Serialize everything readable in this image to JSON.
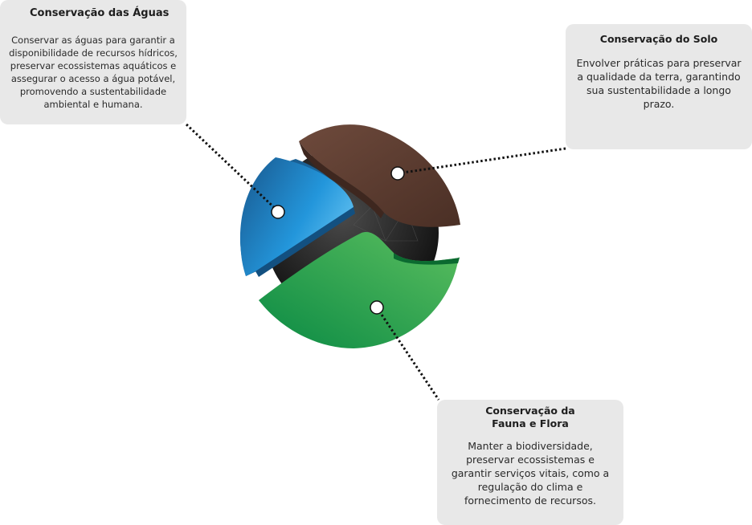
{
  "colors": {
    "water": "#2a93d5",
    "soil": "#5b3a2e",
    "flora": "#2ea44f",
    "core": "#1a1a1a",
    "card_background": "#e8e8e8"
  },
  "cards": {
    "aguas": {
      "title": "Conservação das Águas",
      "body": "Conservar as águas para garantir a disponibilidade de recursos hídricos, preservar ecossistemas aquáticos e assegurar o acesso a água potável, promovendo a sustentabilidade ambiental e humana."
    },
    "solo": {
      "title": "Conservação do Solo",
      "body": "Envolver práticas para preservar a qualidade da terra, garantindo sua sustentabilidade a longo prazo."
    },
    "fauna": {
      "title": "Conservação da Fauna e Flora",
      "body": "Manter a biodiversidade, preservar ecossistemas e garantir serviços vitais, como a regulação do clima e fornecimento de recursos."
    }
  }
}
